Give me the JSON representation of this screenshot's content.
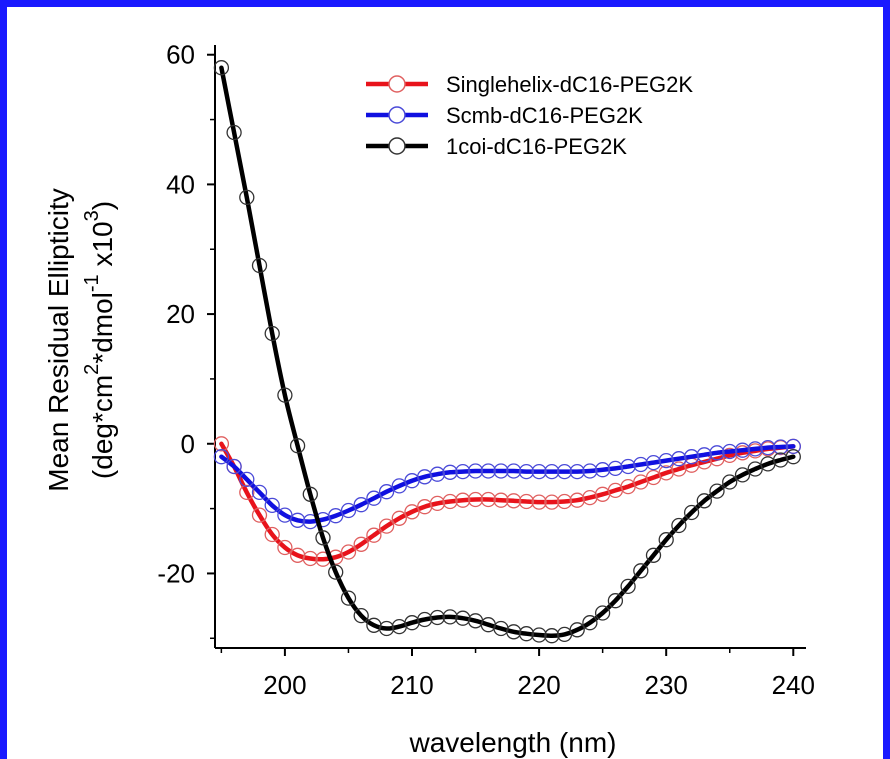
{
  "chart_data": {
    "type": "line",
    "xlabel": "wavelength (nm)",
    "ylabel_line1": "Mean Residual Ellipticity",
    "ylabel_line2": {
      "parts": [
        "(deg*cm",
        "2",
        "*dmol",
        "-1",
        " x10",
        "3",
        ")"
      ]
    },
    "xlim": [
      194.5,
      241
    ],
    "ylim": [
      -31.5,
      61.5
    ],
    "xticks": [
      200,
      210,
      220,
      230,
      240
    ],
    "yticks": [
      -20,
      0,
      20,
      40,
      60
    ],
    "tick_labels_x": [
      "200",
      "210",
      "220",
      "230",
      "240"
    ],
    "tick_labels_y": [
      "-20",
      "0",
      "20",
      "40",
      "60"
    ],
    "legend_position": "top-right",
    "series": [
      {
        "name": "Singlehelix-dC16-PEG2K",
        "color": "#e8131b",
        "marker_color": "#e06060",
        "x": [
          195,
          196,
          197,
          198,
          199,
          200,
          201,
          202,
          203,
          204,
          205,
          206,
          207,
          208,
          209,
          210,
          211,
          212,
          213,
          214,
          215,
          216,
          217,
          218,
          219,
          220,
          221,
          222,
          223,
          224,
          225,
          226,
          227,
          228,
          229,
          230,
          231,
          232,
          233,
          234,
          235,
          236,
          237,
          238,
          239,
          240
        ],
        "y": [
          0,
          -3.5,
          -7.5,
          -11,
          -14,
          -16,
          -17.2,
          -17.7,
          -17.8,
          -17.5,
          -16.7,
          -15.5,
          -14.1,
          -12.7,
          -11.5,
          -10.5,
          -9.7,
          -9.2,
          -8.9,
          -8.7,
          -8.6,
          -8.6,
          -8.7,
          -8.8,
          -8.9,
          -9.0,
          -9.0,
          -8.9,
          -8.7,
          -8.3,
          -7.8,
          -7.2,
          -6.6,
          -5.9,
          -5.2,
          -4.5,
          -3.9,
          -3.3,
          -2.8,
          -2.3,
          -1.8,
          -1.4,
          -1.1,
          -0.8,
          -0.6,
          -0.4
        ]
      },
      {
        "name": "Scmb-dC16-PEG2K",
        "color": "#1010e0",
        "marker_color": "#4a4ad8",
        "x": [
          195,
          196,
          197,
          198,
          199,
          200,
          201,
          202,
          203,
          204,
          205,
          206,
          207,
          208,
          209,
          210,
          211,
          212,
          213,
          214,
          215,
          216,
          217,
          218,
          219,
          220,
          221,
          222,
          223,
          224,
          225,
          226,
          227,
          228,
          229,
          230,
          231,
          232,
          233,
          234,
          235,
          236,
          237,
          238,
          239,
          240
        ],
        "y": [
          -2,
          -3.5,
          -5.5,
          -7.5,
          -9.5,
          -11,
          -11.8,
          -12,
          -11.7,
          -11.1,
          -10.3,
          -9.4,
          -8.4,
          -7.4,
          -6.5,
          -5.7,
          -5.1,
          -4.7,
          -4.4,
          -4.3,
          -4.2,
          -4.2,
          -4.2,
          -4.2,
          -4.3,
          -4.3,
          -4.3,
          -4.3,
          -4.3,
          -4.2,
          -4.0,
          -3.8,
          -3.5,
          -3.2,
          -2.9,
          -2.6,
          -2.3,
          -2.0,
          -1.7,
          -1.4,
          -1.2,
          -1.0,
          -0.8,
          -0.6,
          -0.5,
          -0.4
        ]
      },
      {
        "name": "1coi-dC16-PEG2K",
        "color": "#000000",
        "marker_color": "#333333",
        "x": [
          195,
          196,
          197,
          198,
          199,
          200,
          201,
          202,
          203,
          204,
          205,
          206,
          207,
          208,
          209,
          210,
          211,
          212,
          213,
          214,
          215,
          216,
          217,
          218,
          219,
          220,
          221,
          222,
          223,
          224,
          225,
          226,
          227,
          228,
          229,
          230,
          231,
          232,
          233,
          234,
          235,
          236,
          237,
          238,
          239,
          240
        ],
        "y": [
          58,
          48,
          38,
          27.5,
          17,
          7.5,
          -0.3,
          -7.8,
          -14.5,
          -19.8,
          -23.8,
          -26.5,
          -28,
          -28.5,
          -28.2,
          -27.6,
          -27.1,
          -26.8,
          -26.7,
          -26.9,
          -27.3,
          -27.9,
          -28.5,
          -29,
          -29.3,
          -29.5,
          -29.6,
          -29.4,
          -28.7,
          -27.6,
          -26.1,
          -24.2,
          -22,
          -19.6,
          -17.2,
          -14.8,
          -12.6,
          -10.6,
          -8.8,
          -7.3,
          -5.9,
          -4.8,
          -3.9,
          -3.1,
          -2.5,
          -2
        ]
      }
    ]
  }
}
